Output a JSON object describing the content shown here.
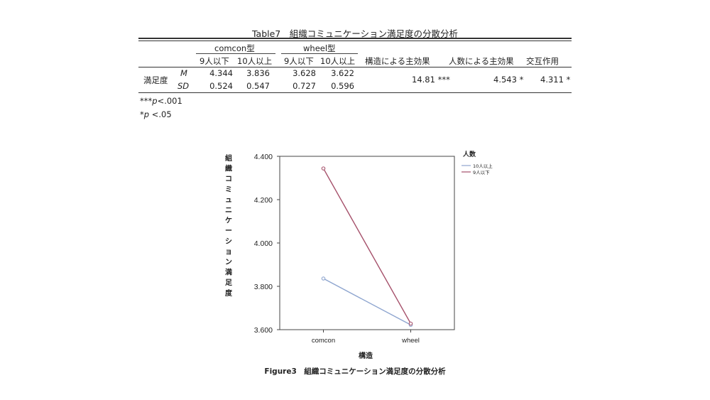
{
  "table": {
    "title": "Table7　組織コミュニケーション満足度の分散分析",
    "group_headers": [
      "comcon型",
      "wheel型"
    ],
    "sub_headers": [
      "9人以下",
      "10人以上",
      "9人以下",
      "10人以上"
    ],
    "effect_headers": [
      "構造による主効果",
      "人数による主効果",
      "交互作用"
    ],
    "row_label": "満足度",
    "rows": [
      {
        "stat": "M",
        "values": [
          "4.344",
          "3.836",
          "3.628",
          "3.622"
        ]
      },
      {
        "stat": "SD",
        "values": [
          "0.524",
          "0.547",
          "0.727",
          "0.596"
        ]
      }
    ],
    "effects": [
      "14.81 ***",
      "4.543 *",
      "4.311 *"
    ],
    "notes": [
      {
        "marker": "***",
        "p": "p",
        "text": "<.001"
      },
      {
        "marker": "*",
        "p": "p",
        "text": "<.05"
      }
    ]
  },
  "chart_data": {
    "type": "line",
    "categories": [
      "comcon",
      "wheel"
    ],
    "series": [
      {
        "name": "10人以上",
        "values": [
          3.836,
          3.622
        ],
        "color": "#8ea5cf"
      },
      {
        "name": "9人以下",
        "values": [
          4.344,
          3.628
        ],
        "color": "#a5506a"
      }
    ],
    "ylim": [
      3.6,
      4.4
    ],
    "yticks": [
      "3.600",
      "3.800",
      "4.000",
      "4.200",
      "4.400"
    ],
    "ylabel": "組織コミュニケーション満足度",
    "xlabel": "構造",
    "legend_title": "人数",
    "legend_placement": "top-right",
    "grid": true
  },
  "figure": {
    "caption": "Figure3　組織コミュニケーション満足度の分散分析"
  }
}
